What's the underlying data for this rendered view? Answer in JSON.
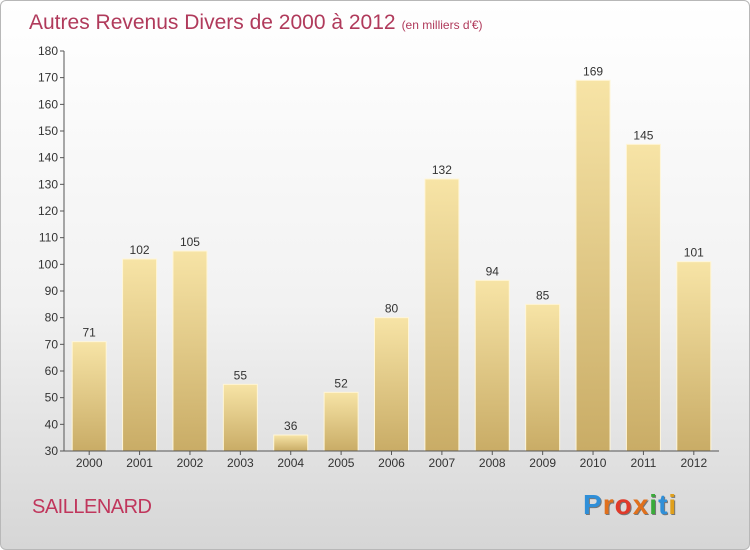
{
  "title": "Autres Revenus Divers de 2000 à 2012",
  "subtitle": "(en milliers d'€)",
  "commune": "SAILLENARD",
  "logo": {
    "letters": [
      "P",
      "r",
      "o",
      "x",
      "i",
      "t",
      "i"
    ],
    "colors": [
      "#2f8fd8",
      "#e0701c",
      "#e03a2a",
      "#e0701c",
      "#3aaa3a",
      "#2f8fd8",
      "#e0a01c"
    ]
  },
  "colors": {
    "bar_light": "#f7e4a6",
    "bar_dark": "#c9ac66",
    "title": "#b03a5b",
    "axis": "#555555"
  },
  "chart_data": {
    "type": "bar",
    "categories": [
      "2000",
      "2001",
      "2002",
      "2003",
      "2004",
      "2005",
      "2006",
      "2007",
      "2008",
      "2009",
      "2010",
      "2011",
      "2012"
    ],
    "values": [
      71,
      102,
      105,
      55,
      36,
      52,
      80,
      132,
      94,
      85,
      169,
      145,
      101
    ],
    "ylim": [
      30,
      180
    ],
    "yticks": [
      30,
      40,
      50,
      60,
      70,
      80,
      90,
      100,
      110,
      120,
      130,
      140,
      150,
      160,
      170,
      180
    ],
    "grid": false,
    "xlabel": "",
    "ylabel": ""
  }
}
